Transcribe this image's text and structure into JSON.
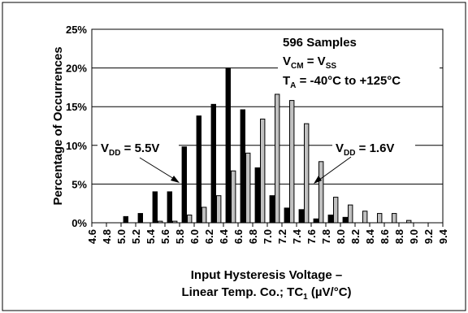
{
  "chart_data": {
    "type": "bar",
    "xlabel_line1": "Input Hysteresis Voltage –",
    "xlabel_line2": {
      "pre": "Linear Temp. Co.; TC",
      "sub": "1",
      "post": " (µV/°C)"
    },
    "ylabel": "Percentage of Occurrences",
    "ylim": [
      0,
      25
    ],
    "yticks": [
      "0%",
      "5%",
      "10%",
      "15%",
      "20%",
      "25%"
    ],
    "xlim": [
      4.6,
      9.4
    ],
    "xticks": [
      "4.6",
      "4.8",
      "5.0",
      "5.2",
      "5.4",
      "5.6",
      "5.8",
      "6.0",
      "6.2",
      "6.4",
      "6.6",
      "6.8",
      "7.0",
      "7.2",
      "7.4",
      "7.6",
      "7.8",
      "8.0",
      "8.2",
      "8.4",
      "8.6",
      "8.8",
      "9.0",
      "9.2",
      "9.4"
    ],
    "bin_width": 0.2,
    "grid": "horizontal",
    "series": [
      {
        "name": "VDD = 5.5V",
        "color": "#000000",
        "bin_starts": [
          5.0,
          5.2,
          5.4,
          5.6,
          5.8,
          6.0,
          6.2,
          6.4,
          6.6,
          6.8,
          7.0,
          7.2,
          7.4,
          7.6,
          7.8,
          8.0
        ],
        "values": [
          0.8,
          1.2,
          4.0,
          4.0,
          9.8,
          13.8,
          15.3,
          20.0,
          14.6,
          7.1,
          3.5,
          1.9,
          1.7,
          0.5,
          1.0,
          0.7
        ]
      },
      {
        "name": "VDD = 1.6V",
        "color": "#c0c0c0",
        "bin_starts": [
          5.0,
          5.2,
          5.4,
          5.6,
          5.8,
          6.0,
          6.2,
          6.4,
          6.6,
          6.8,
          7.0,
          7.2,
          7.4,
          7.6,
          7.8,
          8.0,
          8.2,
          8.4,
          8.6,
          8.8
        ],
        "values": [
          0.0,
          0.0,
          0.2,
          0.2,
          1.0,
          2.0,
          3.5,
          6.7,
          9.0,
          13.4,
          16.6,
          15.8,
          12.8,
          7.9,
          3.3,
          2.3,
          1.5,
          1.2,
          1.2,
          0.3
        ]
      }
    ],
    "annotations": {
      "samples": "596 Samples",
      "vcm": {
        "a": "V",
        "a_sub": "CM",
        "mid": " = V",
        "b_sub": "SS"
      },
      "ta": {
        "a": "T",
        "a_sub": "A",
        "rest": " = -40°C to +125°C"
      },
      "left_label": {
        "a": "V",
        "a_sub": "DD",
        "rest": " = 5.5V"
      },
      "right_label": {
        "a": "V",
        "a_sub": "DD",
        "rest": " = 1.6V"
      }
    }
  }
}
